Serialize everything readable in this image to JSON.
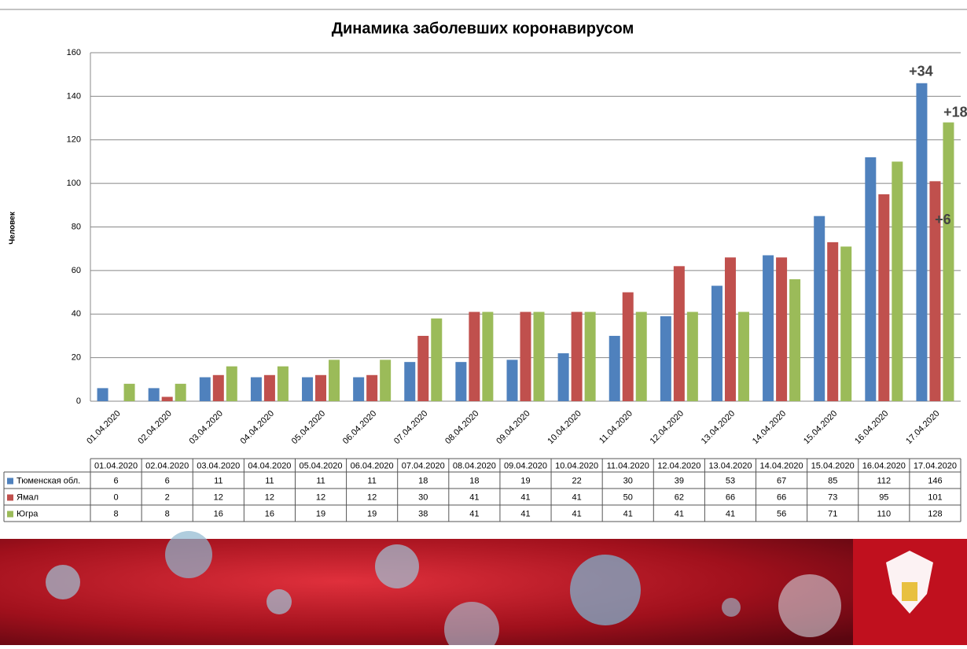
{
  "chart_data": {
    "type": "bar",
    "title": "Динамика заболевших коронавирусом",
    "y_label": "Человек",
    "categories": [
      "01.04.2020",
      "02.04.2020",
      "03.04.2020",
      "04.04.2020",
      "05.04.2020",
      "06.04.2020",
      "07.04.2020",
      "08.04.2020",
      "09.04.2020",
      "10.04.2020",
      "11.04.2020",
      "12.04.2020",
      "13.04.2020",
      "14.04.2020",
      "15.04.2020",
      "16.04.2020",
      "17.04.2020"
    ],
    "series": [
      {
        "name": "Тюменская обл.",
        "color": "#4f81bd",
        "values": [
          6,
          6,
          11,
          11,
          11,
          11,
          18,
          18,
          19,
          22,
          30,
          39,
          53,
          67,
          85,
          112,
          146
        ]
      },
      {
        "name": "Ямал",
        "color": "#c0504d",
        "values": [
          0,
          2,
          12,
          12,
          12,
          12,
          30,
          41,
          41,
          41,
          50,
          62,
          66,
          66,
          73,
          95,
          101
        ]
      },
      {
        "name": "Югра",
        "color": "#9bbb59",
        "values": [
          8,
          8,
          16,
          16,
          19,
          19,
          38,
          41,
          41,
          41,
          41,
          41,
          41,
          56,
          71,
          110,
          128
        ]
      }
    ],
    "annotations": [
      "+34",
      "+18",
      "+6"
    ],
    "ylim": [
      0,
      160
    ],
    "yticks": [
      0,
      20,
      40,
      60,
      80,
      100,
      120,
      140,
      160
    ],
    "grid": true
  }
}
